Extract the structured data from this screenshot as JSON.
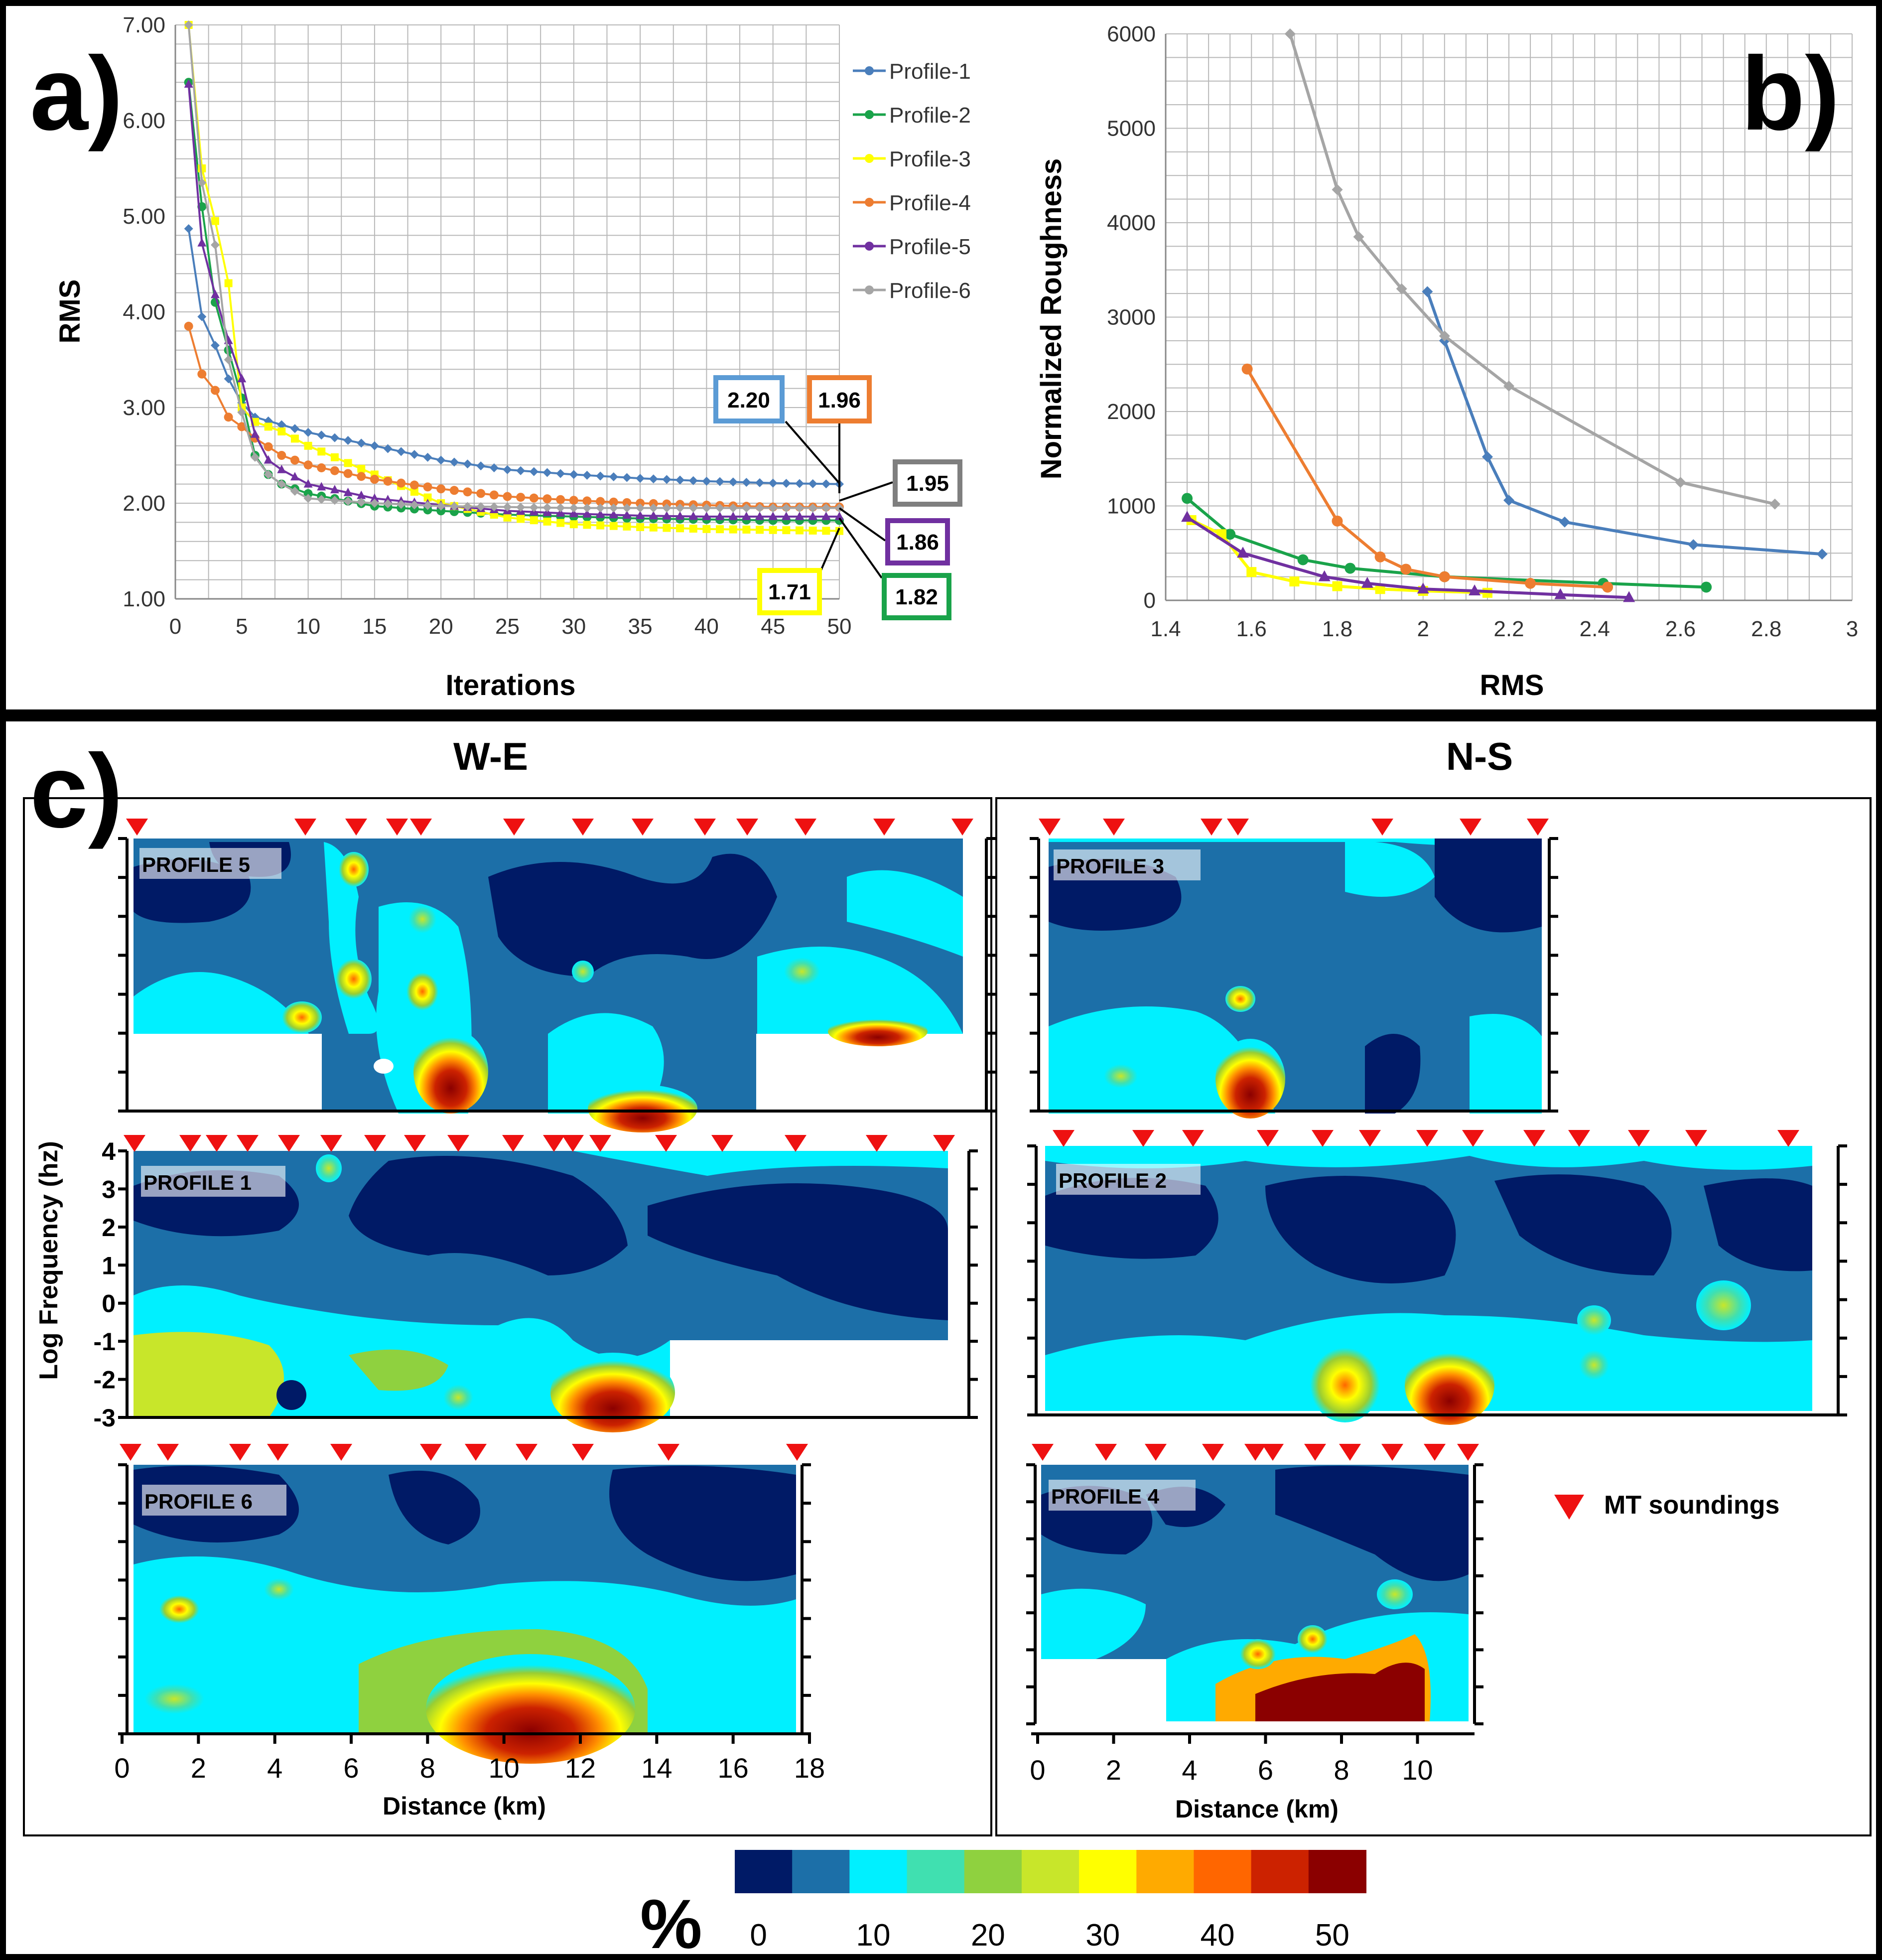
{
  "colors": {
    "profile1": "#4a7ebb",
    "profile2": "#1aa34a",
    "profile3": "#ffff00",
    "profile4": "#ed7d31",
    "profile5": "#7030a0",
    "profile6": "#a5a5a5",
    "grid": "#b8b8b8",
    "marker": "#ee1111",
    "deep_blue": "#001a66",
    "mid_blue": "#1c6fa8",
    "cyan": "#00f0ff",
    "green": "#9acd32",
    "yellow": "#ffff00",
    "orange": "#ff8c00",
    "red": "#cc2200",
    "dark_red": "#8b0000"
  },
  "panel_a": {
    "label": "a)",
    "chart_data": {
      "type": "line",
      "xlabel": "Iterations",
      "ylabel": "RMS",
      "xlim": [
        0,
        50
      ],
      "ylim": [
        1,
        7
      ],
      "xticks": [
        "0",
        "5",
        "10",
        "15",
        "20",
        "25",
        "30",
        "35",
        "40",
        "45",
        "50"
      ],
      "yticks": [
        "1.00",
        "2.00",
        "3.00",
        "4.00",
        "5.00",
        "6.00",
        "7.00"
      ],
      "grid": true,
      "legend_position": "top-right",
      "series": [
        {
          "name": "Profile-1",
          "x": [
            1,
            2,
            3,
            4,
            5,
            6,
            8,
            10,
            15,
            20,
            25,
            30,
            35,
            40,
            45,
            50
          ],
          "y": [
            4.87,
            3.95,
            3.65,
            3.3,
            3.05,
            2.9,
            2.82,
            2.74,
            2.6,
            2.45,
            2.35,
            2.3,
            2.26,
            2.23,
            2.21,
            2.2
          ]
        },
        {
          "name": "Profile-2",
          "x": [
            1,
            2,
            3,
            4,
            5,
            6,
            7,
            8,
            10,
            15,
            20,
            25,
            30,
            35,
            40,
            45,
            50
          ],
          "y": [
            6.4,
            5.1,
            4.1,
            3.6,
            3.1,
            2.5,
            2.3,
            2.2,
            2.1,
            1.97,
            1.92,
            1.88,
            1.86,
            1.84,
            1.83,
            1.82,
            1.82
          ]
        },
        {
          "name": "Profile-3",
          "x": [
            1,
            2,
            3,
            4,
            5,
            6,
            8,
            10,
            15,
            20,
            25,
            30,
            35,
            40,
            45,
            50
          ],
          "y": [
            7.0,
            5.5,
            4.95,
            4.3,
            3.0,
            2.85,
            2.75,
            2.6,
            2.3,
            2.0,
            1.85,
            1.78,
            1.75,
            1.73,
            1.72,
            1.71
          ]
        },
        {
          "name": "Profile-4",
          "x": [
            1,
            2,
            3,
            4,
            5,
            6,
            8,
            10,
            15,
            20,
            25,
            30,
            35,
            40,
            45,
            50
          ],
          "y": [
            3.85,
            3.35,
            3.18,
            2.9,
            2.8,
            2.68,
            2.5,
            2.4,
            2.25,
            2.15,
            2.07,
            2.03,
            2.0,
            1.98,
            1.96,
            1.96
          ]
        },
        {
          "name": "Profile-5",
          "x": [
            1,
            2,
            3,
            4,
            5,
            6,
            7,
            8,
            10,
            15,
            20,
            25,
            30,
            35,
            40,
            45,
            50
          ],
          "y": [
            6.38,
            4.72,
            4.18,
            3.7,
            3.3,
            2.72,
            2.45,
            2.35,
            2.2,
            2.05,
            1.98,
            1.92,
            1.89,
            1.87,
            1.86,
            1.86,
            1.86
          ]
        },
        {
          "name": "Profile-6",
          "x": [
            1,
            2,
            3,
            4,
            5,
            6,
            7,
            8,
            10,
            15,
            20,
            25,
            30,
            35,
            40,
            45,
            50
          ],
          "y": [
            7.0,
            5.35,
            4.7,
            3.5,
            2.95,
            2.48,
            2.3,
            2.2,
            2.05,
            2.0,
            1.97,
            1.96,
            1.95,
            1.95,
            1.95,
            1.95,
            1.95
          ]
        }
      ],
      "annotations": [
        "2.20",
        "1.96",
        "1.95",
        "1.86",
        "1.71",
        "1.82"
      ]
    }
  },
  "panel_b": {
    "label": "b)",
    "chart_data": {
      "type": "line",
      "xlabel": "RMS",
      "ylabel": "Normalized Roughness",
      "xlim": [
        1.4,
        3.0
      ],
      "ylim": [
        0,
        6000
      ],
      "xticks": [
        "1.4",
        "1.6",
        "1.8",
        "2",
        "2.2",
        "2.4",
        "2.6",
        "2.8",
        "3"
      ],
      "yticks": [
        "0",
        "1000",
        "2000",
        "3000",
        "4000",
        "5000",
        "6000"
      ],
      "grid": true,
      "series": [
        {
          "name": "Profile-1",
          "x": [
            2.01,
            2.05,
            2.15,
            2.2,
            2.33,
            2.63,
            2.93
          ],
          "y": [
            3270,
            2750,
            1520,
            1060,
            830,
            590,
            490
          ]
        },
        {
          "name": "Profile-2",
          "x": [
            1.45,
            1.55,
            1.72,
            1.83,
            2.05,
            2.42,
            2.66
          ],
          "y": [
            1080,
            700,
            430,
            340,
            250,
            180,
            140
          ]
        },
        {
          "name": "Profile-3",
          "x": [
            1.46,
            1.53,
            1.6,
            1.7,
            1.8,
            1.9,
            2.0,
            2.15
          ],
          "y": [
            850,
            700,
            300,
            200,
            150,
            120,
            100,
            80
          ]
        },
        {
          "name": "Profile-4",
          "x": [
            1.59,
            1.8,
            1.9,
            1.96,
            2.05,
            2.25,
            2.43
          ],
          "y": [
            2450,
            840,
            460,
            330,
            250,
            180,
            140
          ]
        },
        {
          "name": "Profile-5",
          "x": [
            1.45,
            1.58,
            1.77,
            1.87,
            2.0,
            2.12,
            2.32,
            2.48
          ],
          "y": [
            880,
            500,
            250,
            180,
            120,
            100,
            60,
            30
          ]
        },
        {
          "name": "Profile-6",
          "x": [
            1.69,
            1.8,
            1.85,
            1.95,
            2.05,
            2.2,
            2.6,
            2.82
          ],
          "y": [
            6000,
            4350,
            3850,
            3300,
            2800,
            2270,
            1250,
            1020
          ]
        }
      ]
    }
  },
  "panel_c": {
    "label": "c)",
    "left_header": "W-E",
    "right_header": "N-S",
    "y_axis_label": "Log Frequency (hz)",
    "y_ticks": [
      "4",
      "3",
      "2",
      "1",
      "0",
      "-1",
      "-2",
      "-3"
    ],
    "x_axis_label": "Distance (km)",
    "left_x_ticks": [
      "0",
      "2",
      "4",
      "6",
      "8",
      "10",
      "12",
      "14",
      "16",
      "18"
    ],
    "right_x_ticks": [
      "0",
      "2",
      "4",
      "6",
      "8",
      "10"
    ],
    "profiles": {
      "p5": "PROFILE 5",
      "p1": "PROFILE 1",
      "p6": "PROFILE 6",
      "p3": "PROFILE 3",
      "p2": "PROFILE 2",
      "p4": "PROFILE 4"
    },
    "legend_label": "MT soundings",
    "colorbar": {
      "symbol": "%",
      "ticks": [
        "0",
        "10",
        "20",
        "30",
        "40",
        "50"
      ],
      "colors": [
        "#001a66",
        "#1c6fa8",
        "#00f0ff",
        "#40e0b0",
        "#8fd13f",
        "#c8e62a",
        "#ffff00",
        "#ffaa00",
        "#ff6600",
        "#cc2200",
        "#8b0000"
      ]
    }
  }
}
